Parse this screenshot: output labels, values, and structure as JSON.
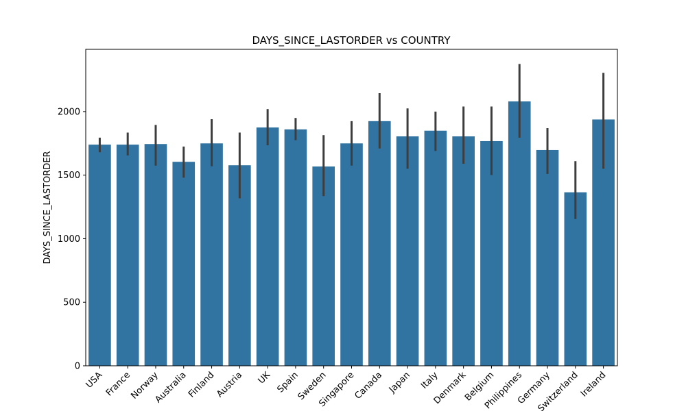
{
  "chart_data": {
    "type": "bar",
    "title": "DAYS_SINCE_LASTORDER vs COUNTRY",
    "xlabel": "",
    "ylabel": "DAYS_SINCE_LASTORDER",
    "ylim": [
      0,
      2490
    ],
    "yticks": [
      0,
      500,
      1000,
      1500,
      2000
    ],
    "categories": [
      "USA",
      "France",
      "Norway",
      "Australia",
      "Finland",
      "Austria",
      "UK",
      "Spain",
      "Sweden",
      "Singapore",
      "Canada",
      "Japan",
      "Italy",
      "Denmark",
      "Belgium",
      "Philippines",
      "Germany",
      "Switzerland",
      "Ireland"
    ],
    "values": [
      1740,
      1740,
      1745,
      1605,
      1750,
      1578,
      1875,
      1860,
      1568,
      1750,
      1925,
      1805,
      1850,
      1805,
      1768,
      2080,
      1698,
      1365,
      1938
    ],
    "error_low": [
      1680,
      1655,
      1575,
      1480,
      1570,
      1318,
      1735,
      1775,
      1335,
      1575,
      1710,
      1550,
      1690,
      1590,
      1500,
      1795,
      1510,
      1155,
      1550
    ],
    "error_high": [
      1795,
      1835,
      1895,
      1725,
      1940,
      1835,
      2020,
      1950,
      1815,
      1925,
      2145,
      2025,
      2000,
      2040,
      2040,
      2375,
      1870,
      1610,
      2305
    ],
    "bar_color": "#3274a1",
    "error_color": "#3d3d3d",
    "grid": false
  }
}
